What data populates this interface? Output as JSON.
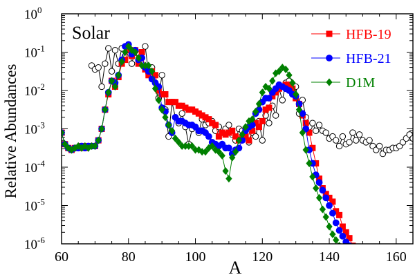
{
  "chart_data": {
    "type": "scatter",
    "title": "",
    "xlabel": "A",
    "ylabel": "Relative Abundances",
    "xlim": [
      60,
      165
    ],
    "ylim_log10": [
      -6,
      0
    ],
    "yscale": "log",
    "x_ticks": [
      60,
      80,
      100,
      120,
      140,
      160
    ],
    "x_tick_labels": [
      "60",
      "80",
      "100",
      "120",
      "140",
      "160"
    ],
    "y_ticks_log10": [
      -6,
      -5,
      -4,
      -3,
      -2,
      -1,
      0
    ],
    "y_tick_labels": [
      {
        "base": "10",
        "exp": "-6"
      },
      {
        "base": "10",
        "exp": "-5"
      },
      {
        "base": "10",
        "exp": "-4"
      },
      {
        "base": "10",
        "exp": "-3"
      },
      {
        "base": "10",
        "exp": "-2"
      },
      {
        "base": "10",
        "exp": "-1"
      },
      {
        "base": "10",
        "exp": "0"
      }
    ],
    "annotation": "Solar",
    "legend_position": "top-right",
    "series": [
      {
        "name": "Solar",
        "in_legend": false,
        "color": "#000000",
        "marker": "open-circle",
        "x": [
          69,
          70,
          71,
          72,
          73,
          74,
          75,
          76,
          77,
          78,
          79,
          80,
          81,
          82,
          83,
          84,
          85,
          86,
          87,
          88,
          89,
          90,
          91,
          92,
          93,
          94,
          95,
          96,
          97,
          98,
          99,
          100,
          101,
          102,
          103,
          104,
          105,
          106,
          107,
          108,
          109,
          110,
          111,
          112,
          113,
          114,
          115,
          116,
          117,
          118,
          119,
          120,
          121,
          122,
          123,
          124,
          125,
          126,
          127,
          128,
          129,
          130,
          131,
          132,
          133,
          134,
          135,
          136,
          137,
          138,
          139,
          140,
          141,
          142,
          143,
          144,
          145,
          146,
          147,
          148,
          149,
          150,
          151,
          152,
          153,
          154,
          155,
          156,
          157,
          158,
          159,
          160,
          161,
          162,
          163,
          164,
          165
        ],
        "log10": [
          -1.35,
          -1.45,
          -1.4,
          -1.9,
          -1.3,
          -0.9,
          -1.5,
          -0.95,
          -1.3,
          -0.9,
          -1.1,
          -0.8,
          -1.3,
          -0.95,
          -1.05,
          -1.15,
          -0.85,
          -1.55,
          -1.4,
          -1.8,
          -2.2,
          -1.6,
          -2.5,
          -3.2,
          -2.3,
          -2.7,
          -2.85,
          -2.6,
          -2.95,
          -3.4,
          -3.0,
          -2.95,
          -3.1,
          -2.75,
          -2.9,
          -2.85,
          -2.8,
          -3.05,
          -2.95,
          -3.1,
          -3.0,
          -2.9,
          -3.15,
          -3.3,
          -3.0,
          -3.05,
          -3.0,
          -3.35,
          -3.1,
          -3.2,
          -2.8,
          -3.3,
          -2.65,
          -2.85,
          -2.4,
          -2.65,
          -1.95,
          -2.25,
          -1.8,
          -1.75,
          -2.0,
          -1.9,
          -2.6,
          -2.25,
          -2.7,
          -2.95,
          -2.85,
          -3.05,
          -2.9,
          -3.05,
          -3.1,
          -3.25,
          -3.2,
          -3.3,
          -3.45,
          -3.2,
          -3.4,
          -3.35,
          -3.1,
          -3.3,
          -3.15,
          -3.3,
          -3.35,
          -3.3,
          -3.45,
          -3.55,
          -3.45,
          -3.65,
          -3.55,
          -3.55,
          -3.5,
          -3.5,
          -3.45,
          -3.35,
          -3.25,
          -3.15,
          -3.25
        ]
      },
      {
        "name": "HFB-19",
        "in_legend": true,
        "color": "#ff0000",
        "marker": "square",
        "x": [
          60,
          61,
          62,
          63,
          64,
          65,
          66,
          67,
          68,
          69,
          70,
          71,
          72,
          73,
          74,
          75,
          76,
          77,
          78,
          79,
          80,
          81,
          82,
          83,
          84,
          85,
          86,
          87,
          88,
          89,
          90,
          91,
          92,
          93,
          94,
          95,
          96,
          97,
          98,
          99,
          100,
          101,
          102,
          103,
          104,
          105,
          106,
          107,
          108,
          109,
          110,
          111,
          112,
          113,
          114,
          115,
          116,
          117,
          118,
          119,
          120,
          121,
          122,
          123,
          124,
          125,
          126,
          127,
          128,
          129,
          130,
          131,
          132,
          133,
          134,
          135,
          136,
          137,
          138,
          139,
          140,
          141,
          142,
          143,
          144,
          145,
          146,
          147
        ],
        "log10": [
          -3.1,
          -3.4,
          -3.5,
          -3.55,
          -3.5,
          -3.5,
          -3.45,
          -3.5,
          -3.45,
          -3.45,
          -3.45,
          -3.3,
          -3.0,
          -2.5,
          -2.1,
          -1.75,
          -1.9,
          -1.65,
          -1.3,
          -1.2,
          -0.95,
          -1.1,
          -0.95,
          -1.3,
          -1.0,
          -1.45,
          -1.6,
          -1.5,
          -1.6,
          -2.0,
          -2.1,
          -2.1,
          -2.3,
          -2.3,
          -2.3,
          -2.4,
          -2.4,
          -2.45,
          -2.5,
          -2.5,
          -2.55,
          -2.6,
          -2.65,
          -2.7,
          -2.75,
          -2.85,
          -2.9,
          -3.2,
          -3.1,
          -3.15,
          -3.1,
          -3.05,
          -3.2,
          -3.3,
          -3.25,
          -3.2,
          -3.3,
          -3.05,
          -2.85,
          -2.95,
          -2.8,
          -2.5,
          -2.45,
          -2.15,
          -2.05,
          -1.95,
          -1.9,
          -1.85,
          -1.85,
          -1.95,
          -2.2,
          -2.35,
          -2.65,
          -2.85,
          -3.1,
          -3.5,
          -3.9,
          -4.3,
          -4.55,
          -4.7,
          -4.8,
          -4.9,
          -5.15,
          -5.25,
          -5.55,
          -5.7,
          -5.85,
          -6.05
        ]
      },
      {
        "name": "HFB-21",
        "in_legend": true,
        "color": "#0000ff",
        "marker": "circle",
        "x": [
          60,
          61,
          62,
          63,
          64,
          65,
          66,
          67,
          68,
          69,
          70,
          71,
          72,
          73,
          74,
          75,
          76,
          77,
          78,
          79,
          80,
          81,
          82,
          83,
          84,
          85,
          86,
          87,
          88,
          89,
          90,
          91,
          92,
          93,
          94,
          95,
          96,
          97,
          98,
          99,
          100,
          101,
          102,
          103,
          104,
          105,
          106,
          107,
          108,
          109,
          110,
          111,
          112,
          113,
          114,
          115,
          116,
          117,
          118,
          119,
          120,
          121,
          122,
          123,
          124,
          125,
          126,
          127,
          128,
          129,
          130,
          131,
          132,
          133,
          134,
          135,
          136,
          137,
          138,
          139,
          140,
          141,
          142,
          143,
          144,
          145,
          146
        ],
        "log10": [
          -3.1,
          -3.4,
          -3.5,
          -3.55,
          -3.5,
          -3.5,
          -3.45,
          -3.5,
          -3.45,
          -3.45,
          -3.45,
          -3.3,
          -3.0,
          -2.5,
          -2.05,
          -1.75,
          -1.8,
          -1.6,
          -1.2,
          -0.85,
          -0.8,
          -1.05,
          -0.95,
          -1.2,
          -1.15,
          -1.4,
          -1.5,
          -1.7,
          -1.8,
          -1.9,
          -2.45,
          -2.55,
          -2.9,
          -3.1,
          -2.7,
          -2.8,
          -2.8,
          -2.85,
          -2.9,
          -2.9,
          -2.95,
          -3.05,
          -3.05,
          -3.1,
          -3.2,
          -3.35,
          -3.4,
          -3.45,
          -3.4,
          -3.5,
          -3.5,
          -3.65,
          -3.55,
          -3.5,
          -3.3,
          -3.05,
          -2.95,
          -2.9,
          -2.6,
          -2.5,
          -2.3,
          -2.2,
          -2.2,
          -2.05,
          -1.95,
          -1.85,
          -1.9,
          -1.95,
          -2.0,
          -2.1,
          -2.15,
          -2.35,
          -2.6,
          -3.0,
          -3.55,
          -3.9,
          -4.2,
          -4.4,
          -4.6,
          -4.8,
          -5.0,
          -5.2,
          -5.45,
          -5.65,
          -5.8,
          -5.95,
          -6.05
        ]
      },
      {
        "name": "D1M",
        "in_legend": true,
        "color": "#008000",
        "marker": "diamond",
        "x": [
          60,
          61,
          62,
          63,
          64,
          65,
          66,
          67,
          68,
          69,
          70,
          71,
          72,
          73,
          74,
          75,
          76,
          77,
          78,
          79,
          80,
          81,
          82,
          83,
          84,
          85,
          86,
          87,
          88,
          89,
          90,
          91,
          92,
          93,
          94,
          95,
          96,
          97,
          98,
          99,
          100,
          101,
          102,
          103,
          104,
          105,
          106,
          107,
          108,
          109,
          110,
          111,
          112,
          113,
          114,
          115,
          116,
          117,
          118,
          119,
          120,
          121,
          122,
          123,
          124,
          125,
          126,
          127,
          128,
          129,
          130,
          131,
          132,
          133,
          134,
          135,
          136,
          137,
          138,
          139,
          140,
          141,
          142,
          143
        ],
        "log10": [
          -3.1,
          -3.4,
          -3.5,
          -3.55,
          -3.5,
          -3.45,
          -3.5,
          -3.45,
          -3.5,
          -3.45,
          -3.45,
          -3.3,
          -3.0,
          -2.5,
          -2.05,
          -1.75,
          -1.9,
          -1.6,
          -1.25,
          -1.0,
          -0.85,
          -0.95,
          -1.0,
          -1.15,
          -1.35,
          -1.35,
          -1.35,
          -1.5,
          -1.95,
          -2.25,
          -2.5,
          -2.7,
          -2.9,
          -3.05,
          -3.25,
          -3.35,
          -3.45,
          -3.45,
          -3.45,
          -3.45,
          -3.55,
          -3.55,
          -3.6,
          -3.6,
          -3.5,
          -3.45,
          -3.55,
          -3.6,
          -3.7,
          -4.1,
          -4.3,
          -3.75,
          -3.6,
          -3.3,
          -3.15,
          -2.95,
          -2.8,
          -2.75,
          -2.55,
          -2.35,
          -2.05,
          -1.9,
          -1.95,
          -1.75,
          -1.55,
          -1.5,
          -1.4,
          -1.45,
          -1.6,
          -1.8,
          -2.1,
          -2.5,
          -3.1,
          -3.55,
          -3.9,
          -4.25,
          -4.55,
          -4.8,
          -5.1,
          -5.3,
          -5.55,
          -5.75,
          -5.9,
          -6.05
        ]
      }
    ]
  }
}
